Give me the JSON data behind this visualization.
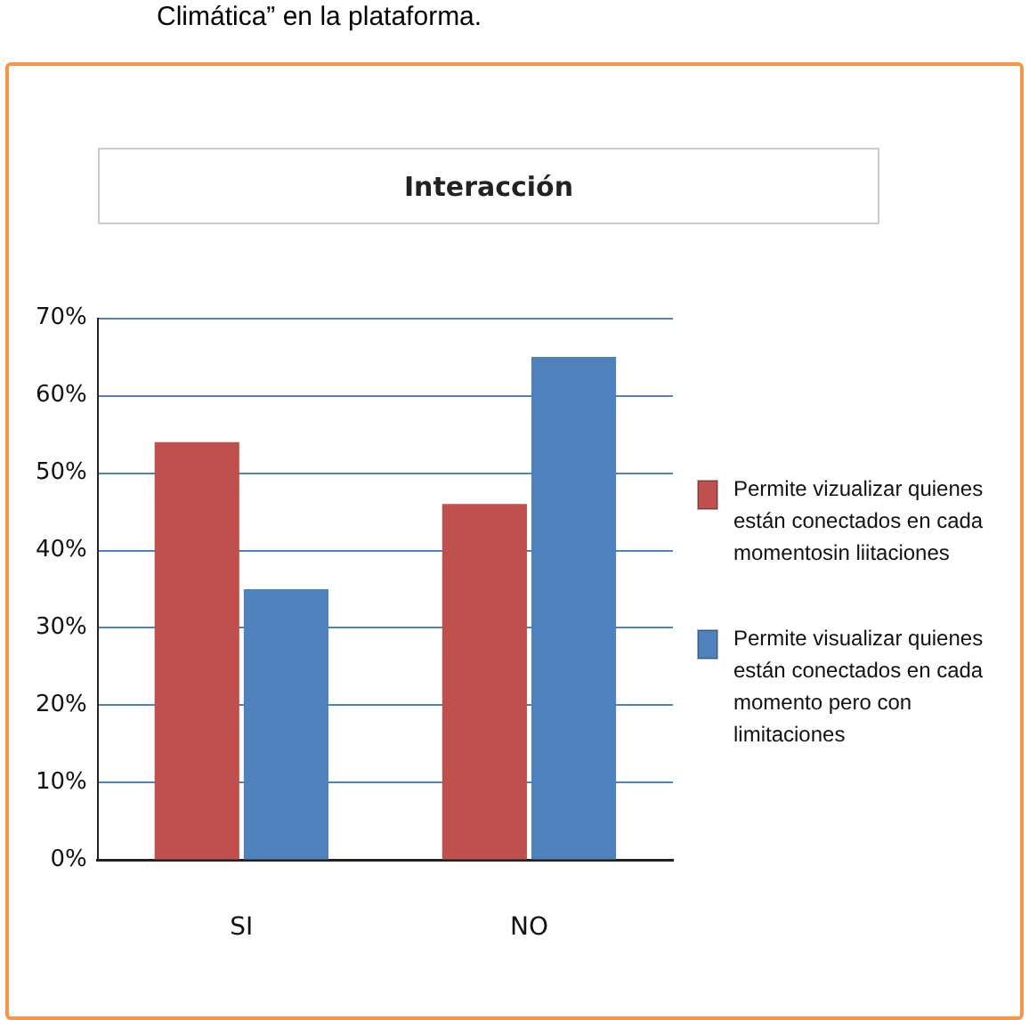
{
  "chart_data": {
    "type": "bar",
    "title": "Interacción",
    "annotations": [
      "Climática” en la plataforma."
    ],
    "categories": [
      "SI",
      "NO"
    ],
    "series": [
      {
        "name": "Permite vizualizar quienes están conectados en cada momentosin liitaciones",
        "color": "#c0504d",
        "values": [
          54,
          46
        ]
      },
      {
        "name": "Permite visualizar quienes están conectados en cada momento pero con limitaciones",
        "color": "#4f81bd",
        "values": [
          35,
          65
        ]
      }
    ],
    "ylim": [
      0,
      70
    ],
    "yticks": [
      {
        "value": 0,
        "label": "0%"
      },
      {
        "value": 10,
        "label": "10%"
      },
      {
        "value": 20,
        "label": "20%"
      },
      {
        "value": 30,
        "label": "30%"
      },
      {
        "value": 40,
        "label": "40%"
      },
      {
        "value": 50,
        "label": "50%"
      },
      {
        "value": 60,
        "label": "60%"
      },
      {
        "value": 70,
        "label": "70%"
      }
    ],
    "grid": "y",
    "legend": "right"
  }
}
